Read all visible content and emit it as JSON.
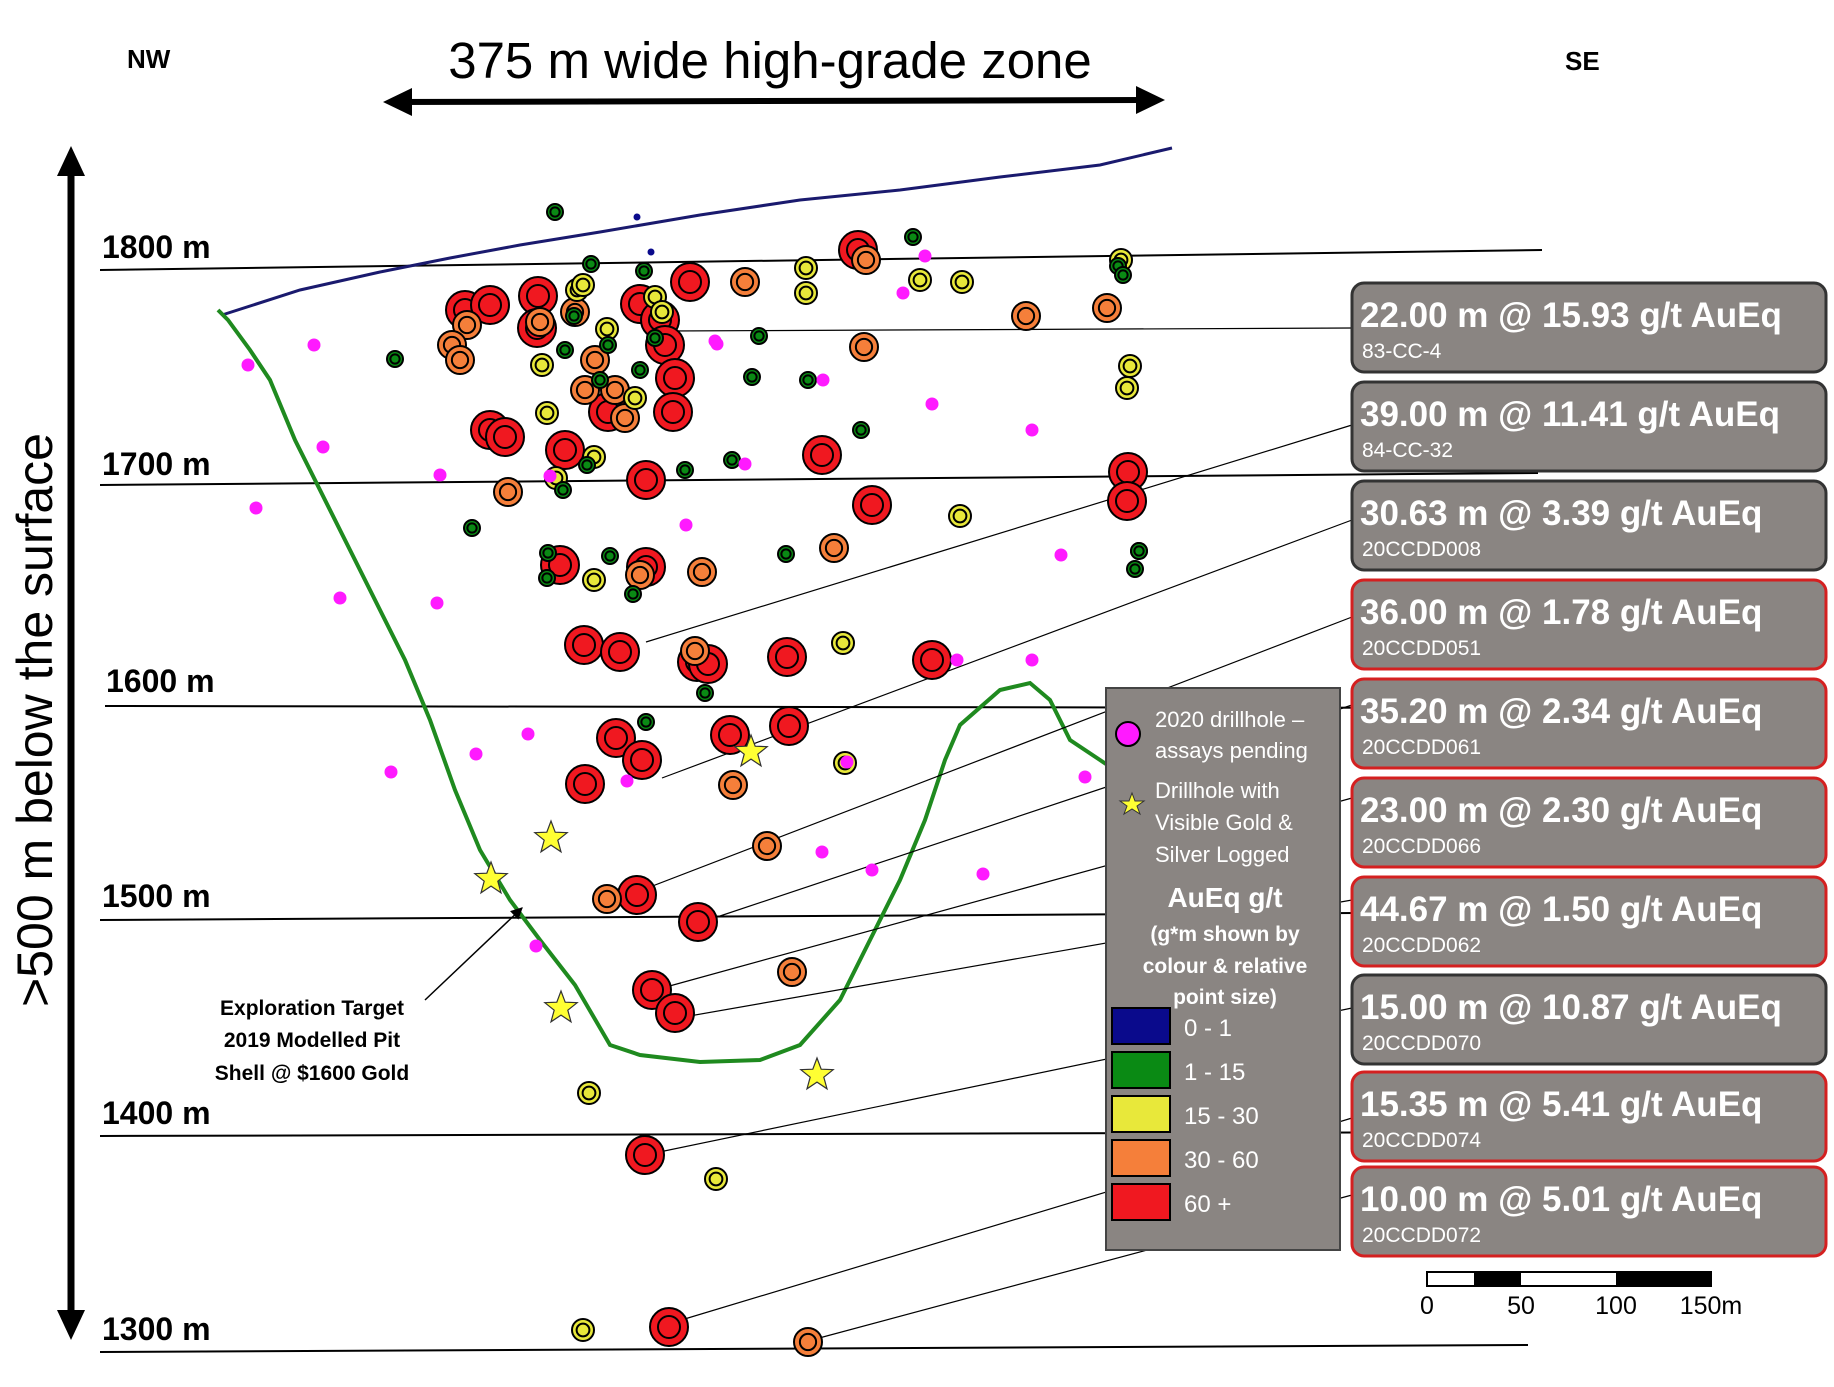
{
  "title": {
    "nw": "NW",
    "se": "SE",
    "zone": "375 m wide high-grade zone",
    "depth": ">500 m below the surface"
  },
  "elevations": [
    "1800 m",
    "1700 m",
    "1600 m",
    "1500 m",
    "1400 m",
    "1300 m"
  ],
  "pit_label": [
    "Exploration Target",
    "2019 Modelled Pit",
    "Shell @ $1600 Gold"
  ],
  "intercepts": [
    {
      "text": "22.00 m @  15.93 g/t AuEq",
      "hole": "83-CC-4",
      "border": "#333333"
    },
    {
      "text": "39.00 m @ 11.41 g/t AuEq",
      "hole": "84-CC-32",
      "border": "#333333"
    },
    {
      "text": "30.63 m @ 3.39 g/t AuEq",
      "hole": "20CCDD008",
      "border": "#333333"
    },
    {
      "text": "36.00 m @ 1.78 g/t AuEq",
      "hole": "20CCDD051",
      "border": "#d42020"
    },
    {
      "text": "35.20 m @ 2.34 g/t AuEq",
      "hole": "20CCDD061",
      "border": "#d42020"
    },
    {
      "text": "23.00 m @ 2.30 g/t AuEq",
      "hole": "20CCDD066",
      "border": "#d42020"
    },
    {
      "text": "44.67 m @ 1.50 g/t AuEq",
      "hole": "20CCDD062",
      "border": "#d42020"
    },
    {
      "text": "15.00 m @ 10.87 g/t AuEq",
      "hole": "20CCDD070",
      "border": "#333333"
    },
    {
      "text": "15.35 m @ 5.41 g/t AuEq",
      "hole": "20CCDD074",
      "border": "#d42020"
    },
    {
      "text": "10.00 m @ 5.01 g/t AuEq",
      "hole": "20CCDD072",
      "border": "#d42020"
    }
  ],
  "legend": {
    "pending": [
      "2020 drillhole –",
      "assays pending"
    ],
    "gold": [
      "Drillhole with",
      "Visible Gold &",
      "Silver Logged"
    ],
    "heading": "AuEq g/t",
    "note": [
      "(g*m shown by",
      "colour & relative",
      "point size)"
    ],
    "ranges": [
      {
        "label": "0 - 1",
        "color": "#0a0a8c"
      },
      {
        "label": "1 - 15",
        "color": "#0a8a14"
      },
      {
        "label": "15 - 30",
        "color": "#e8e83a"
      },
      {
        "label": "30 - 60",
        "color": "#f57f3a"
      },
      {
        "label": "60 +",
        "color": "#f01820"
      }
    ]
  },
  "scale_bar": {
    "ticks": [
      "0",
      "50",
      "100",
      "150m"
    ]
  },
  "colors": {
    "red": "#f01820",
    "orange": "#f57f3a",
    "yellow": "#e8e83a",
    "green": "#0a8a14",
    "blue": "#0a0a8c",
    "magenta": "#ff1aff",
    "pit": "#1f8a1f",
    "topo": "#1a1a6e"
  }
}
